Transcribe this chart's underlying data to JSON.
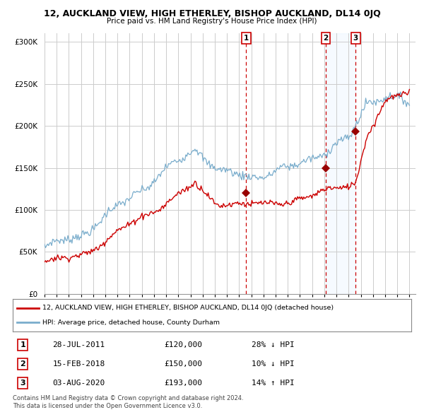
{
  "title": "12, AUCKLAND VIEW, HIGH ETHERLEY, BISHOP AUCKLAND, DL14 0JQ",
  "subtitle": "Price paid vs. HM Land Registry's House Price Index (HPI)",
  "legend_label_red": "12, AUCKLAND VIEW, HIGH ETHERLEY, BISHOP AUCKLAND, DL14 0JQ (detached house)",
  "legend_label_blue": "HPI: Average price, detached house, County Durham",
  "footer1": "Contains HM Land Registry data © Crown copyright and database right 2024.",
  "footer2": "This data is licensed under the Open Government Licence v3.0.",
  "transactions": [
    {
      "num": 1,
      "date": "28-JUL-2011",
      "price": "£120,000",
      "hpi": "28% ↓ HPI"
    },
    {
      "num": 2,
      "date": "15-FEB-2018",
      "price": "£150,000",
      "hpi": "10% ↓ HPI"
    },
    {
      "num": 3,
      "date": "03-AUG-2020",
      "price": "£193,000",
      "hpi": "14% ↑ HPI"
    }
  ],
  "ylim": [
    0,
    310000
  ],
  "yticks": [
    0,
    50000,
    100000,
    150000,
    200000,
    250000,
    300000
  ],
  "background_color": "#ffffff",
  "grid_color": "#cccccc",
  "red_color": "#cc0000",
  "blue_color": "#7aadcc",
  "shade_color": "#ddeeff",
  "transaction_marker_color": "#990000",
  "vline_color": "#cc0000",
  "t1_x": 2011.58,
  "t1_y": 120000,
  "t2_x": 2018.12,
  "t2_y": 150000,
  "t3_x": 2020.58,
  "t3_y": 193000,
  "xlim_left": 1995.0,
  "xlim_right": 2025.5
}
